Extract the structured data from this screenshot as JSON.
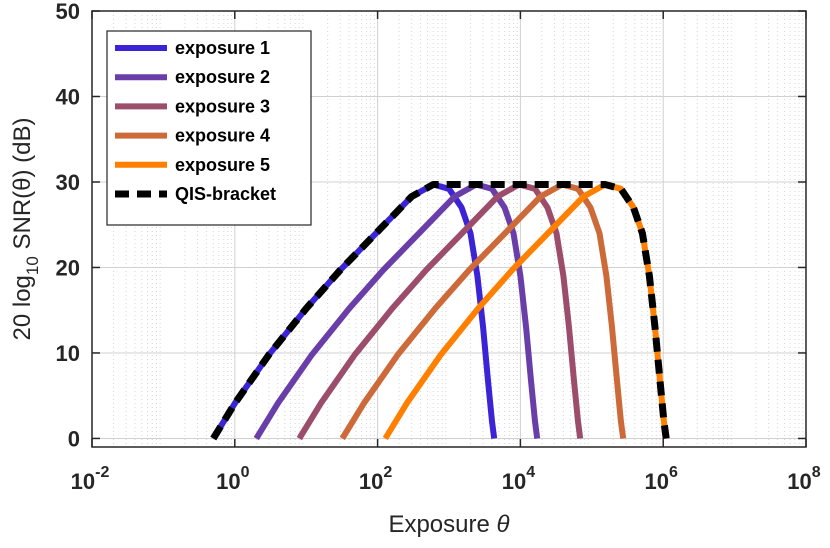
{
  "chart_data": {
    "type": "line",
    "xscale": "log",
    "xlim": [
      0.01,
      100000000
    ],
    "ylim": [
      -1,
      50
    ],
    "grid": true,
    "legend_position": "top-left",
    "xlabel": "Exposure θ",
    "ylabel": "20 log10 SNR(θ) (dB)",
    "x_ticks": [
      {
        "value": 0.01,
        "base": "10",
        "exp": "-2"
      },
      {
        "value": 1,
        "base": "10",
        "exp": "0"
      },
      {
        "value": 100,
        "base": "10",
        "exp": "2"
      },
      {
        "value": 10000,
        "base": "10",
        "exp": "4"
      },
      {
        "value": 1000000,
        "base": "10",
        "exp": "6"
      },
      {
        "value": 100000000,
        "base": "10",
        "exp": "8"
      }
    ],
    "y_ticks": [
      "0",
      "10",
      "20",
      "30",
      "40",
      "50"
    ],
    "series": [
      {
        "name": "exposure 1",
        "color": "#3a24d6",
        "style": "solid",
        "points": [
          [
            0.5,
            0
          ],
          [
            1,
            4.1
          ],
          [
            3,
            9.8
          ],
          [
            10,
            15.2
          ],
          [
            30,
            19.7
          ],
          [
            100,
            24.2
          ],
          [
            300,
            28.3
          ],
          [
            600,
            29.7
          ],
          [
            1000,
            29.2
          ],
          [
            1500,
            27
          ],
          [
            2000,
            24
          ],
          [
            2500,
            19
          ],
          [
            3000,
            13
          ],
          [
            3500,
            7
          ],
          [
            4000,
            2
          ],
          [
            4300,
            0
          ]
        ]
      },
      {
        "name": "exposure 2",
        "color": "#6a3ea8",
        "style": "solid",
        "points": [
          [
            2,
            0
          ],
          [
            4,
            4.1
          ],
          [
            12,
            9.8
          ],
          [
            40,
            15.2
          ],
          [
            120,
            19.7
          ],
          [
            400,
            24.2
          ],
          [
            1200,
            28.3
          ],
          [
            2400,
            29.7
          ],
          [
            4000,
            29.2
          ],
          [
            6000,
            27
          ],
          [
            8000,
            24
          ],
          [
            10000,
            19
          ],
          [
            12000,
            13
          ],
          [
            14000,
            7
          ],
          [
            16000,
            2
          ],
          [
            17200,
            0
          ]
        ]
      },
      {
        "name": "exposure 3",
        "color": "#9b4d6b",
        "style": "solid",
        "points": [
          [
            8,
            0
          ],
          [
            16,
            4.1
          ],
          [
            48,
            9.8
          ],
          [
            160,
            15.2
          ],
          [
            480,
            19.7
          ],
          [
            1600,
            24.2
          ],
          [
            4800,
            28.3
          ],
          [
            9600,
            29.7
          ],
          [
            16000,
            29.2
          ],
          [
            24000,
            27
          ],
          [
            32000,
            24
          ],
          [
            40000,
            19
          ],
          [
            48000,
            13
          ],
          [
            56000,
            7
          ],
          [
            64000,
            2
          ],
          [
            68800,
            0
          ]
        ]
      },
      {
        "name": "exposure 4",
        "color": "#cd6a39",
        "style": "solid",
        "points": [
          [
            32,
            0
          ],
          [
            64,
            4.1
          ],
          [
            192,
            9.8
          ],
          [
            640,
            15.2
          ],
          [
            1920,
            19.7
          ],
          [
            6400,
            24.2
          ],
          [
            19200,
            28.3
          ],
          [
            38400,
            29.7
          ],
          [
            64000,
            29.2
          ],
          [
            96000,
            27
          ],
          [
            128000,
            24
          ],
          [
            160000,
            19
          ],
          [
            192000,
            13
          ],
          [
            224000,
            7
          ],
          [
            256000,
            2
          ],
          [
            275200,
            0
          ]
        ]
      },
      {
        "name": "exposure 5",
        "color": "#ff8000",
        "style": "solid",
        "points": [
          [
            128,
            0
          ],
          [
            256,
            4.1
          ],
          [
            768,
            9.8
          ],
          [
            2560,
            15.2
          ],
          [
            7680,
            19.7
          ],
          [
            25600,
            24.2
          ],
          [
            76800,
            28.3
          ],
          [
            153600,
            29.7
          ],
          [
            256000,
            29.2
          ],
          [
            384000,
            27
          ],
          [
            512000,
            24
          ],
          [
            640000,
            19
          ],
          [
            768000,
            13
          ],
          [
            896000,
            7
          ],
          [
            1024000,
            2
          ],
          [
            1100800,
            0
          ]
        ]
      },
      {
        "name": "QIS-bracket",
        "color": "#000000",
        "style": "dashed",
        "points": [
          [
            0.5,
            0
          ],
          [
            1,
            4.1
          ],
          [
            3,
            9.8
          ],
          [
            10,
            15.2
          ],
          [
            30,
            19.7
          ],
          [
            100,
            24.2
          ],
          [
            300,
            28.3
          ],
          [
            600,
            29.7
          ],
          [
            153600,
            29.7
          ],
          [
            256000,
            29.2
          ],
          [
            384000,
            27
          ],
          [
            512000,
            24
          ],
          [
            640000,
            19
          ],
          [
            768000,
            13
          ],
          [
            896000,
            7
          ],
          [
            1024000,
            2
          ],
          [
            1100800,
            0
          ]
        ]
      }
    ]
  }
}
